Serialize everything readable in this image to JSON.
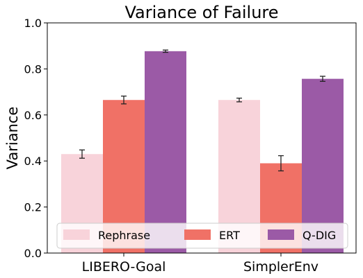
{
  "chart_data": {
    "type": "bar",
    "title": "Variance of Failure",
    "xlabel": "",
    "ylabel": "Variance",
    "ylim": [
      0,
      1.0
    ],
    "yticks": [
      "0.0",
      "0.2",
      "0.4",
      "0.6",
      "0.8",
      "1.0"
    ],
    "categories": [
      "LIBERO-Goal",
      "SimplerEnv"
    ],
    "series": [
      {
        "name": "Rephrase",
        "color": "#f8d3da",
        "values": [
          0.43,
          0.665
        ],
        "errors": [
          0.018,
          0.008
        ]
      },
      {
        "name": "ERT",
        "color": "#f07166",
        "values": [
          0.665,
          0.39
        ],
        "errors": [
          0.017,
          0.033
        ]
      },
      {
        "name": "Q-DIG",
        "color": "#9b5aa6",
        "values": [
          0.877,
          0.757
        ],
        "errors": [
          0.005,
          0.011
        ]
      }
    ],
    "grid": false,
    "legend_position": "bottom"
  }
}
